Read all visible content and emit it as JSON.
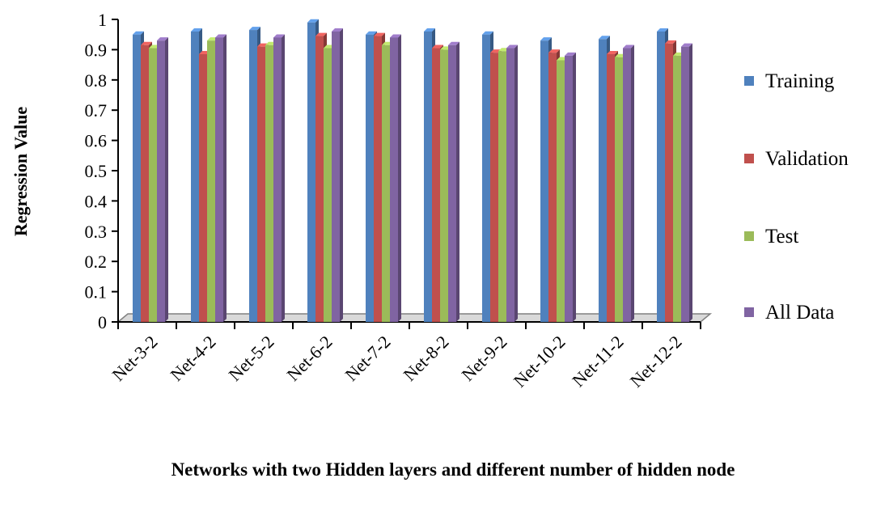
{
  "chart_data": {
    "type": "bar",
    "xlabel": "Networks with two Hidden layers and different number of hidden node",
    "ylabel": "Regression Value",
    "ylim": [
      0,
      1
    ],
    "yticks": [
      "0",
      "0.1",
      "0.2",
      "0.3",
      "0.4",
      "0.5",
      "0.6",
      "0.7",
      "0.8",
      "0.9",
      "1"
    ],
    "categories": [
      "Net-3-2",
      "Net-4-2",
      "Net-5-2",
      "Net-6-2",
      "Net-7-2",
      "Net-8-2",
      "Net-9-2",
      "Net-10-2",
      "Net-11-2",
      "Net-12-2"
    ],
    "series": [
      {
        "name": "Training",
        "color": "#4F81BD",
        "values": [
          0.95,
          0.96,
          0.965,
          0.99,
          0.95,
          0.96,
          0.95,
          0.93,
          0.935,
          0.96
        ]
      },
      {
        "name": "Validation",
        "color": "#C0504D",
        "values": [
          0.915,
          0.885,
          0.91,
          0.945,
          0.945,
          0.905,
          0.89,
          0.89,
          0.885,
          0.92
        ]
      },
      {
        "name": "Test",
        "color": "#9BBB59",
        "values": [
          0.905,
          0.93,
          0.915,
          0.905,
          0.915,
          0.9,
          0.895,
          0.865,
          0.875,
          0.88
        ]
      },
      {
        "name": "All Data",
        "color": "#8064A2",
        "values": [
          0.93,
          0.94,
          0.94,
          0.96,
          0.94,
          0.915,
          0.905,
          0.88,
          0.905,
          0.91
        ]
      }
    ],
    "legend_position": "right",
    "grid": false
  }
}
